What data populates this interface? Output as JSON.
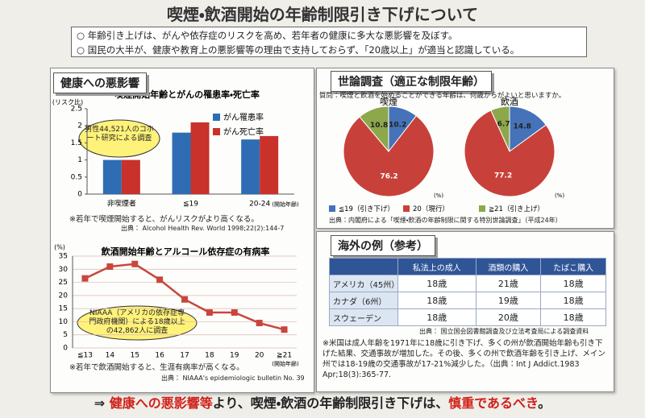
{
  "header": {
    "title": "喫煙・飲酒開始の年齢制限引き下げについて"
  },
  "bullets": [
    "○ 年齢引き上げは、がんや依存症のリスクを高め、若年者の健康に多大な悪影響を及ぼす。",
    "○ 国民の大半が、健康や教育上の悪影響等の理由で支持しておらず、「20歳以上」が適当と認識している。"
  ],
  "sections": {
    "health": "健康への悪影響",
    "survey": "世論調査（適正な制限年齢）",
    "overseas": "海外の例（参考）"
  },
  "chart_data": [
    {
      "type": "bar",
      "title": "喫煙開始年齢とがんの罹患率・死亡率",
      "ylabel": "(リスク比)",
      "xlabel": "(開始年齢)",
      "categories": [
        "非喫煙者",
        "≦19",
        "20-24"
      ],
      "series": [
        {
          "name": "がん罹患率",
          "color": "#2e6db4",
          "values": [
            1,
            1.8,
            1.6
          ]
        },
        {
          "name": "がん死亡率",
          "color": "#c8322b",
          "values": [
            1,
            2.1,
            1.7
          ]
        }
      ],
      "ylim": [
        0,
        2.5
      ],
      "yticks": [
        0,
        0.5,
        1,
        1.5,
        2,
        2.5
      ],
      "grid": false,
      "annotation": "男性44,521人のコホート研究による調査",
      "note": "※若年で喫煙開始すると、がんリスクがより高くなる。",
      "source": "出典： Alcohol Health Rev. World 1998;22(2):144-7"
    },
    {
      "type": "line",
      "title": "飲酒開始年齢とアルコール依存症の有病率",
      "ylabel": "(%)",
      "xlabel": "(開始年齢)",
      "categories": [
        "≦13",
        "14",
        "15",
        "16",
        "17",
        "18",
        "19",
        "20",
        "≧21"
      ],
      "values": [
        26.5,
        31,
        32,
        26,
        18.5,
        13.5,
        13.5,
        9.5,
        7
      ],
      "color": "#c9463d",
      "ylim": [
        0,
        35
      ],
      "yticks": [
        0,
        5,
        10,
        15,
        20,
        25,
        30,
        35
      ],
      "grid": true,
      "annotation": "NIAAA（アメリカの依存症専門政府機関）による18歳以上の42,862人に調査",
      "note": "※若年で飲酒開始すると、生涯有病率が高くなる。",
      "source": "出典： NIAAA's epidemiologic bulletin No. 39"
    },
    {
      "type": "pie",
      "question": "質問：喫煙と飲酒を始めることができる年齢は、何歳からがよいと思いますか。",
      "unit": "(%)",
      "categories": [
        "≦19（引き下げ）",
        "20（現行）",
        "≧21（引き上げ）"
      ],
      "colors": [
        "#4572b8",
        "#c7413a",
        "#8ca84b"
      ],
      "series": [
        {
          "name": "喫煙",
          "values": [
            10.2,
            76.2,
            10.8
          ]
        },
        {
          "name": "飲酒",
          "values": [
            14.8,
            77.2,
            6.7
          ]
        }
      ],
      "source": "出典：内閣府による「喫煙・飲酒の年齢制限に関する特別世論調査」（平成24年）"
    }
  ],
  "table": {
    "columns": [
      "私法上の成人",
      "酒類の購入",
      "たばこ購入"
    ],
    "rows": [
      {
        "label": "アメリカ（45州）",
        "cells": [
          "18歳",
          "21歳",
          "18歳"
        ]
      },
      {
        "label": "カナダ（6州）",
        "cells": [
          "18歳",
          "19歳",
          "18歳"
        ]
      },
      {
        "label": "スウェーデン",
        "cells": [
          "18歳",
          "20歳",
          "18歳"
        ]
      }
    ],
    "source": "出典： 国立国会図書館調査及び立法考査局による調査資料"
  },
  "overseas_note": "※米国は成人年齢を1971年に18歳に引き下げ、多くの州が飲酒開始年齢も引き下げた結果、交通事故が増加した。その後、多くの州で飲酒年齢を引き上げ、メイン州では18-19歳の交通事故が17-21%減少した。（出典：Int J Addict.1983 Apr;18(3):365-77.",
  "conclusion": [
    {
      "text": "⇒ ",
      "emphasis": false
    },
    {
      "text": "健康への悪影響等",
      "emphasis": true
    },
    {
      "text": "より、喫煙・飲酒の年齢制限引き下げは、",
      "emphasis": false
    },
    {
      "text": "慎重であるべき",
      "emphasis": true
    },
    {
      "text": "。",
      "emphasis": false
    }
  ]
}
